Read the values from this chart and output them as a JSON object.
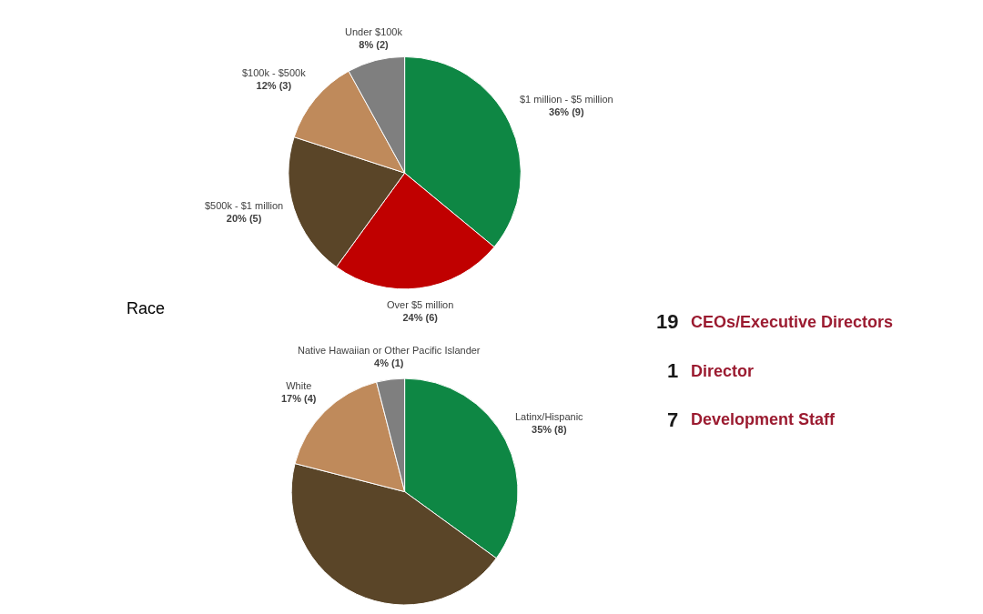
{
  "chart_data": [
    {
      "type": "pie",
      "categories": [
        "$1 million - $5 million",
        "Over $5 million",
        "$500k - $1 million",
        "$100k - $500k",
        "Under $100k"
      ],
      "values": [
        36,
        24,
        20,
        12,
        8
      ],
      "value_labels": [
        "36% (9)",
        "24% (6)",
        "20% (5)",
        "12% (3)",
        "8% (2)"
      ],
      "colors": [
        "#0e8744",
        "#c00000",
        "#5a4528",
        "#bf8a5b",
        "#7f7f7f"
      ]
    },
    {
      "type": "pie",
      "title": "Race",
      "categories": [
        "Latinx/Hispanic",
        null,
        "White",
        "Native Hawaiian or Other Pacific Islander"
      ],
      "values": [
        35,
        44,
        17,
        4
      ],
      "value_labels": [
        "35% (8)",
        null,
        "17% (4)",
        "4% (1)"
      ],
      "colors": [
        "#0e8744",
        "#5a4528",
        "#bf8a5b",
        "#7f7f7f"
      ]
    },
    {
      "type": "other",
      "categories": [
        "CEOs/Executive Directors",
        "Director",
        "Development Staff"
      ],
      "values": [
        19,
        1,
        7
      ],
      "data_labels": true
    }
  ]
}
